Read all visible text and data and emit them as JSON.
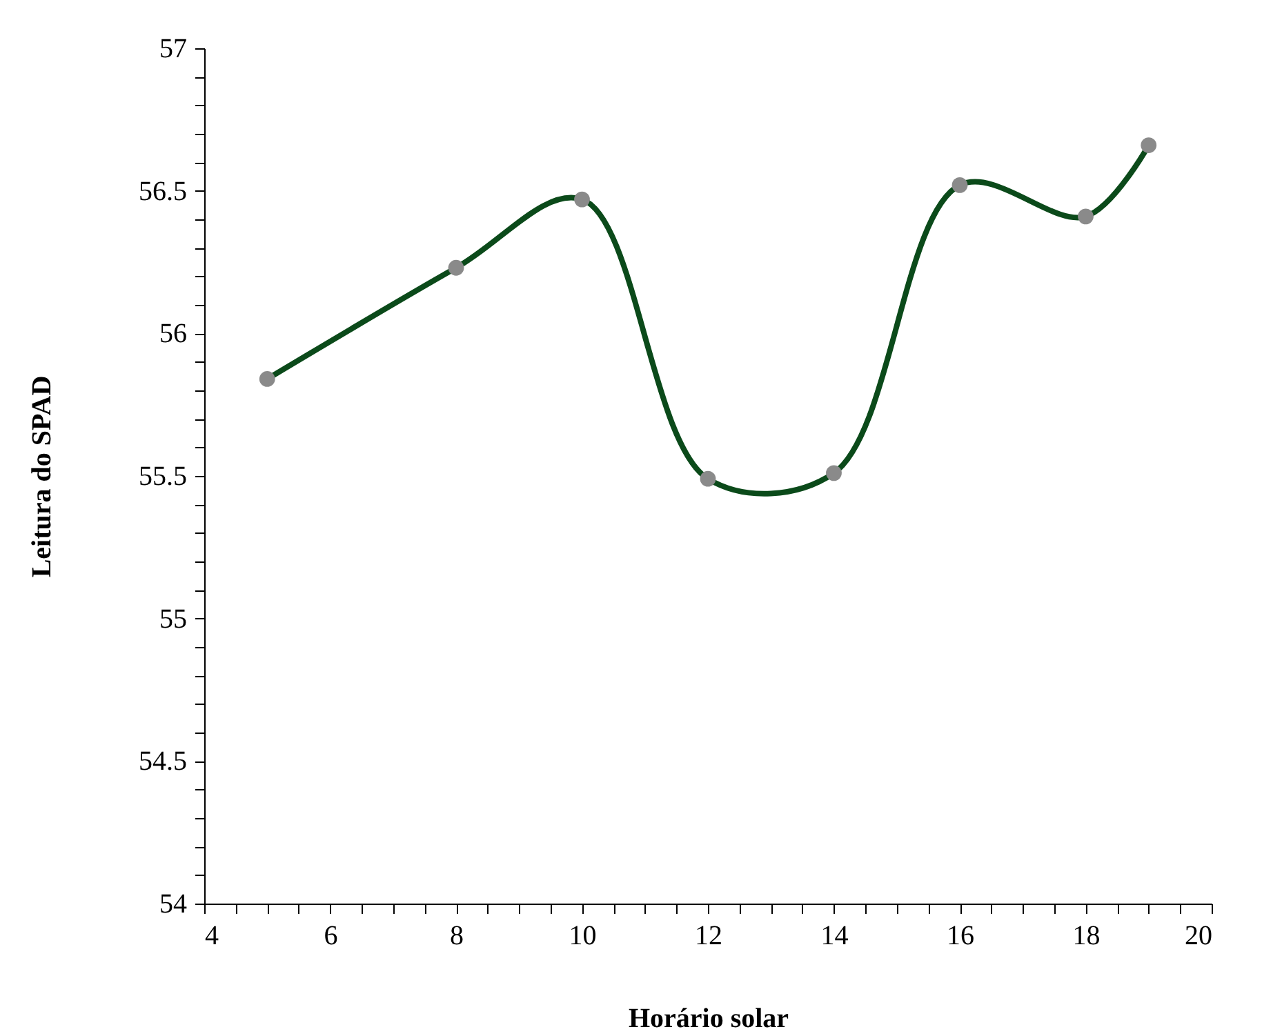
{
  "chart_data": {
    "type": "line",
    "xlabel": "Horário solar",
    "ylabel": "Leitura do SPAD",
    "marker": "circle",
    "line_style": "solid",
    "grid": false,
    "legend": false,
    "series": [
      {
        "color": "#0b4a1a",
        "x": [
          5,
          8,
          10,
          12,
          14,
          16,
          18,
          19
        ],
        "values": [
          55.84,
          56.23,
          56.47,
          55.49,
          55.51,
          56.52,
          56.41,
          56.66
        ]
      }
    ],
    "xlim": [
      4,
      20
    ],
    "xticks": [
      4,
      {
        "value": 4.5,
        "label": null
      },
      {
        "value": 5,
        "label": null
      },
      {
        "value": 5.5,
        "label": null
      },
      6,
      {
        "value": 6.5,
        "label": null
      },
      {
        "value": 7,
        "label": null
      },
      {
        "value": 7.5,
        "label": null
      },
      8,
      {
        "value": 8.5,
        "label": null
      },
      {
        "value": 9,
        "label": null
      },
      {
        "value": 9.5,
        "label": null
      },
      10,
      {
        "value": 10.5,
        "label": null
      },
      {
        "value": 11,
        "label": null
      },
      {
        "value": 11.5,
        "label": null
      },
      12,
      {
        "value": 12.5,
        "label": null
      },
      {
        "value": 13,
        "label": null
      },
      {
        "value": 13.5,
        "label": null
      },
      14,
      {
        "value": 14.5,
        "label": null
      },
      {
        "value": 15,
        "label": null
      },
      {
        "value": 15.5,
        "label": null
      },
      16,
      {
        "value": 16.5,
        "label": null
      },
      {
        "value": 17,
        "label": null
      },
      {
        "value": 17.5,
        "label": null
      },
      18,
      {
        "value": 18.5,
        "label": null
      },
      {
        "value": 19,
        "label": null
      },
      {
        "value": 19.5,
        "label": null
      },
      20
    ],
    "ylim": [
      54,
      57
    ],
    "yticks": [
      54,
      {
        "value": 54.1,
        "label": null
      },
      {
        "value": 54.2,
        "label": null
      },
      {
        "value": 54.3,
        "label": null
      },
      {
        "value": 54.4,
        "label": null
      },
      54.5,
      {
        "value": 54.6,
        "label": null
      },
      {
        "value": 54.7,
        "label": null
      },
      {
        "value": 54.8,
        "label": null
      },
      {
        "value": 54.9,
        "label": null
      },
      55,
      {
        "value": 55.1,
        "label": null
      },
      {
        "value": 55.2,
        "label": null
      },
      {
        "value": 55.3,
        "label": null
      },
      {
        "value": 55.4,
        "label": null
      },
      55.5,
      {
        "value": 55.6,
        "label": null
      },
      {
        "value": 55.7,
        "label": null
      },
      {
        "value": 55.8,
        "label": null
      },
      {
        "value": 55.9,
        "label": null
      },
      56,
      {
        "value": 56.1,
        "label": null
      },
      {
        "value": 56.2,
        "label": null
      },
      {
        "value": 56.3,
        "label": null
      },
      {
        "value": 56.4,
        "label": null
      },
      56.5,
      {
        "value": 56.6,
        "label": null
      },
      {
        "value": 56.7,
        "label": null
      },
      {
        "value": 56.8,
        "label": null
      },
      {
        "value": 56.9,
        "label": null
      },
      57
    ]
  }
}
